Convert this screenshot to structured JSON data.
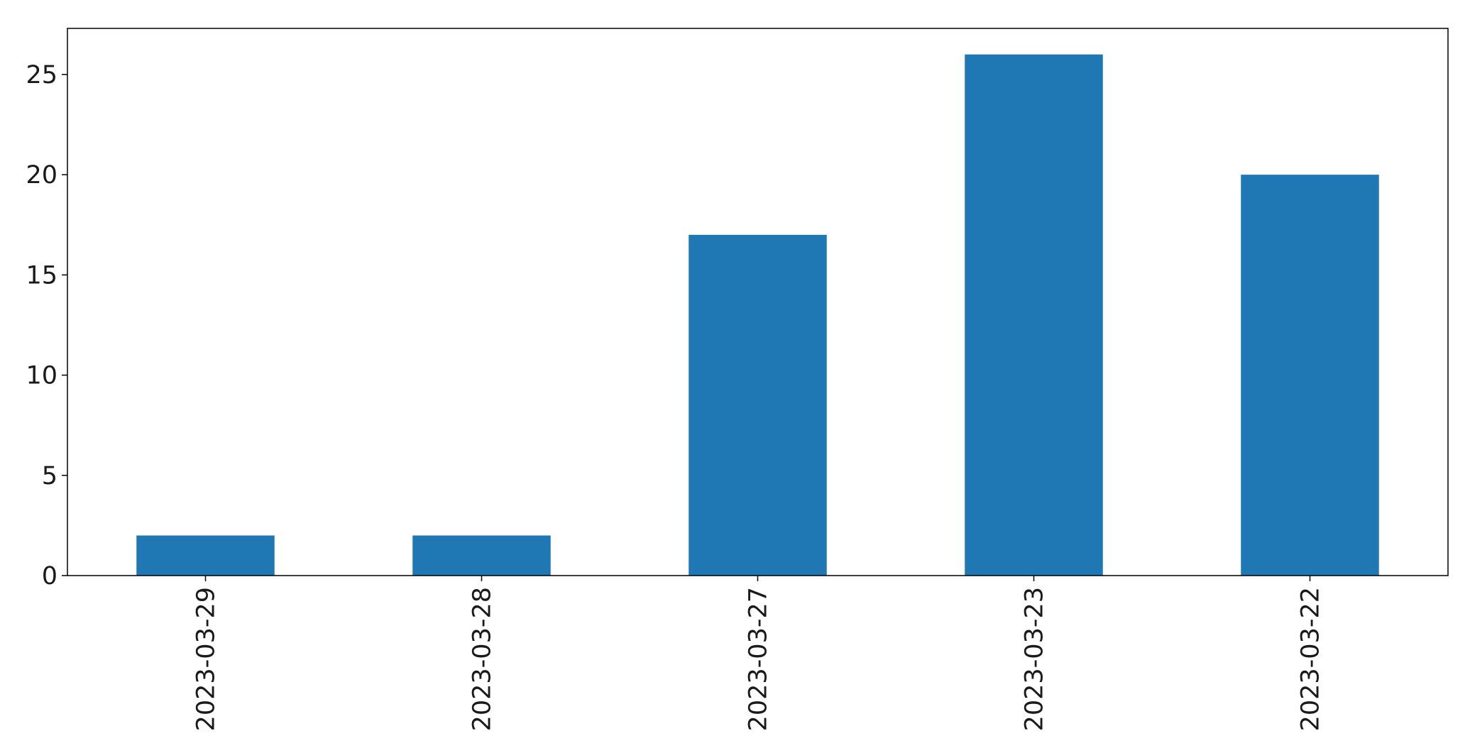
{
  "chart_data": {
    "type": "bar",
    "title": "",
    "xlabel": "",
    "ylabel": "",
    "categories": [
      "2023-03-29",
      "2023-03-28",
      "2023-03-27",
      "2023-03-23",
      "2023-03-22"
    ],
    "values": [
      2,
      2,
      17,
      26,
      20
    ],
    "ylim": [
      0,
      27.3
    ],
    "yticks": [
      0,
      5,
      10,
      15,
      20,
      25
    ],
    "grid": false,
    "legend": "none",
    "x_tick_rotation": "vertical",
    "bar_color": "#1f77b4"
  }
}
